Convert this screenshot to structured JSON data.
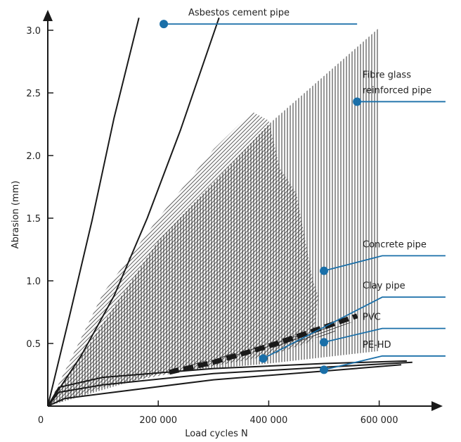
{
  "chart_data": {
    "type": "line",
    "title": "",
    "xlabel": "Load cycles N",
    "ylabel": "Abrasion (mm)",
    "x_ticks": [
      {
        "v": 0,
        "label": "0"
      },
      {
        "v": 200000,
        "label": "200 000"
      },
      {
        "v": 400000,
        "label": "400 000"
      },
      {
        "v": 600000,
        "label": "600 000"
      }
    ],
    "y_ticks": [
      {
        "v": 0.5,
        "label": "0.5"
      },
      {
        "v": 1.0,
        "label": "1.0"
      },
      {
        "v": 1.5,
        "label": "1.5"
      },
      {
        "v": 2.0,
        "label": "2.0"
      },
      {
        "v": 2.5,
        "label": "2.5"
      },
      {
        "v": 3.0,
        "label": "3.0"
      }
    ],
    "xlim": [
      0,
      720000
    ],
    "ylim": [
      0,
      3.2
    ],
    "grid": false,
    "line_color": "#1a1a1a",
    "accent_color": "#1a6fa8",
    "series": [
      {
        "name": "Asbestos cement pipe",
        "style": "curves",
        "lines": [
          [
            [
              0,
              0
            ],
            [
              40000,
              0.73
            ],
            [
              80000,
              1.48
            ],
            [
              120000,
              2.3
            ],
            [
              165000,
              3.1
            ]
          ],
          [
            [
              0,
              0
            ],
            [
              60000,
              0.4
            ],
            [
              120000,
              0.88
            ],
            [
              180000,
              1.5
            ],
            [
              240000,
              2.2
            ],
            [
              310000,
              3.1
            ]
          ]
        ]
      },
      {
        "name": "Fibre glass reinforced pipe",
        "style": "hatch-vertical",
        "upper": [
          [
            0,
            0
          ],
          [
            200000,
            1.32
          ],
          [
            400000,
            2.25
          ],
          [
            600000,
            3.02
          ]
        ],
        "lower": [
          [
            600000,
            0.44
          ],
          [
            400000,
            0.34
          ],
          [
            200000,
            0.26
          ],
          [
            0,
            0
          ]
        ]
      },
      {
        "name": "Concrete pipe",
        "style": "hatch-diagonal",
        "upper": [
          [
            0,
            0
          ],
          [
            100000,
            0.9
          ],
          [
            200000,
            1.5
          ],
          [
            300000,
            2.05
          ],
          [
            370000,
            2.35
          ],
          [
            400000,
            2.28
          ],
          [
            420000,
            1.9
          ],
          [
            450000,
            1.7
          ],
          [
            480000,
            1.0
          ],
          [
            490000,
            0.88
          ]
        ],
        "lower": [
          [
            480000,
            0.52
          ],
          [
            400000,
            0.4
          ],
          [
            300000,
            0.32
          ],
          [
            200000,
            0.24
          ],
          [
            100000,
            0.15
          ],
          [
            0,
            0
          ]
        ]
      },
      {
        "name": "Clay pipe",
        "style": "hatch-horizontal",
        "upper": [
          [
            0,
            0
          ],
          [
            200000,
            0.27
          ],
          [
            300000,
            0.38
          ],
          [
            400000,
            0.5
          ],
          [
            500000,
            0.62
          ],
          [
            560000,
            0.68
          ],
          [
            520000,
            0.62
          ]
        ],
        "lower": [
          [
            520000,
            0.58
          ],
          [
            400000,
            0.46
          ],
          [
            300000,
            0.36
          ],
          [
            200000,
            0.27
          ],
          [
            0,
            0
          ]
        ]
      },
      {
        "name": "PVC",
        "style": "dashed-bold",
        "points": [
          [
            220000,
            0.27
          ],
          [
            300000,
            0.35
          ],
          [
            400000,
            0.48
          ],
          [
            500000,
            0.63
          ],
          [
            560000,
            0.72
          ]
        ]
      },
      {
        "name": "PE-HD",
        "style": "curves",
        "lines": [
          [
            [
              0,
              0
            ],
            [
              20000,
              0.15
            ],
            [
              100000,
              0.23
            ],
            [
              300000,
              0.3
            ],
            [
              500000,
              0.34
            ],
            [
              650000,
              0.36
            ]
          ],
          [
            [
              0,
              0
            ],
            [
              20000,
              0.11
            ],
            [
              100000,
              0.17
            ],
            [
              300000,
              0.26
            ],
            [
              500000,
              0.31
            ],
            [
              660000,
              0.35
            ]
          ],
          [
            [
              0,
              0
            ],
            [
              30000,
              0.06
            ],
            [
              100000,
              0.1
            ],
            [
              300000,
              0.21
            ],
            [
              500000,
              0.28
            ],
            [
              640000,
              0.33
            ]
          ]
        ]
      }
    ],
    "annotations": [
      {
        "name": "asbestos",
        "label": "Asbestos cement pipe",
        "marker": [
          210000,
          3.05
        ],
        "lineTo": [
          560000,
          3.05
        ],
        "lines": [
          "Asbestos cement pipe"
        ]
      },
      {
        "name": "fibre-glass",
        "label": "Fibre glass reinforced pipe",
        "marker": [
          560000,
          2.43
        ],
        "lineTo": [
          720000,
          2.43
        ],
        "lines": [
          "Fibre glass",
          "reinforced pipe"
        ]
      },
      {
        "name": "concrete",
        "label": "Concrete pipe",
        "marker": [
          500000,
          1.08
        ],
        "lineTo": [
          720000,
          1.2
        ],
        "lines": [
          "Concrete pipe"
        ]
      },
      {
        "name": "clay",
        "label": "Clay pipe",
        "marker": [
          390000,
          0.38
        ],
        "lineTo": [
          720000,
          0.87
        ],
        "lines": [
          "Clay pipe"
        ]
      },
      {
        "name": "pvc",
        "label": "PVC",
        "marker": [
          500000,
          0.51
        ],
        "lineTo": [
          720000,
          0.62
        ],
        "lines": [
          "PVC"
        ]
      },
      {
        "name": "pe-hd",
        "label": "PE-HD",
        "marker": [
          500000,
          0.29
        ],
        "lineTo": [
          720000,
          0.4
        ],
        "lines": [
          "PE-HD"
        ]
      }
    ]
  }
}
